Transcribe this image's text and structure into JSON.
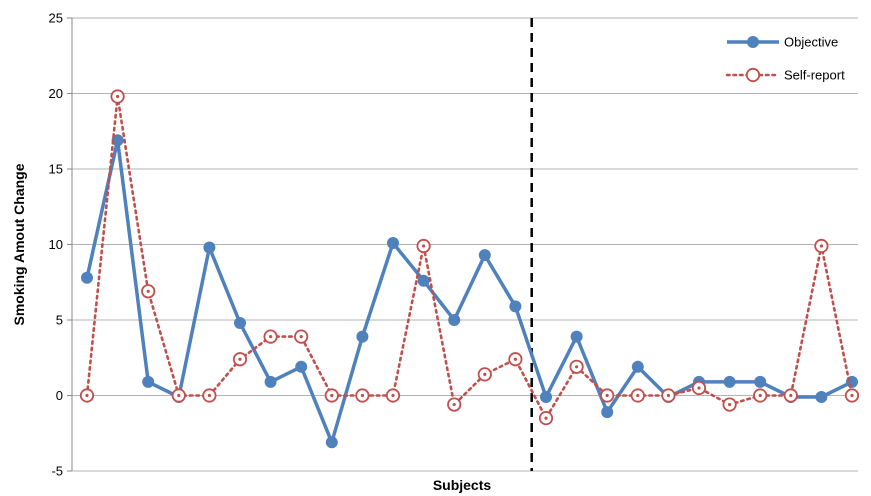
{
  "chart_data": {
    "type": "line",
    "title": "",
    "xlabel": "Subjects",
    "ylabel": "Smoking Amout Change",
    "ylim": [
      -5,
      25
    ],
    "yticks": [
      "-5",
      "0",
      "5",
      "10",
      "15",
      "20",
      "25"
    ],
    "grid": "horizontal",
    "legend_position": "top-right",
    "divider_after_subject": 15,
    "x": [
      1,
      2,
      3,
      4,
      5,
      6,
      7,
      8,
      9,
      10,
      11,
      12,
      13,
      14,
      15,
      16,
      17,
      18,
      19,
      20,
      21,
      22,
      23,
      24,
      25,
      26
    ],
    "series": [
      {
        "name": "Objective",
        "color": "#4f81bd",
        "style": "solid",
        "values": [
          7.8,
          16.9,
          0.9,
          -0.1,
          9.8,
          4.8,
          0.9,
          1.9,
          -3.1,
          3.9,
          10.1,
          7.6,
          5.0,
          9.3,
          5.9,
          -0.1,
          3.9,
          -1.1,
          1.9,
          -0.1,
          0.9,
          0.9,
          0.9,
          -0.1,
          -0.1,
          0.9
        ]
      },
      {
        "name": "Self-report",
        "color": "#c0504d",
        "style": "dotted",
        "values": [
          0.0,
          19.8,
          6.9,
          0.0,
          0.0,
          2.4,
          3.9,
          3.9,
          0.0,
          0.0,
          0.0,
          9.9,
          -0.6,
          1.4,
          2.4,
          -1.5,
          1.9,
          0.0,
          0.0,
          0.0,
          0.5,
          -0.6,
          0.0,
          0.0,
          9.9,
          0.0
        ]
      }
    ]
  }
}
